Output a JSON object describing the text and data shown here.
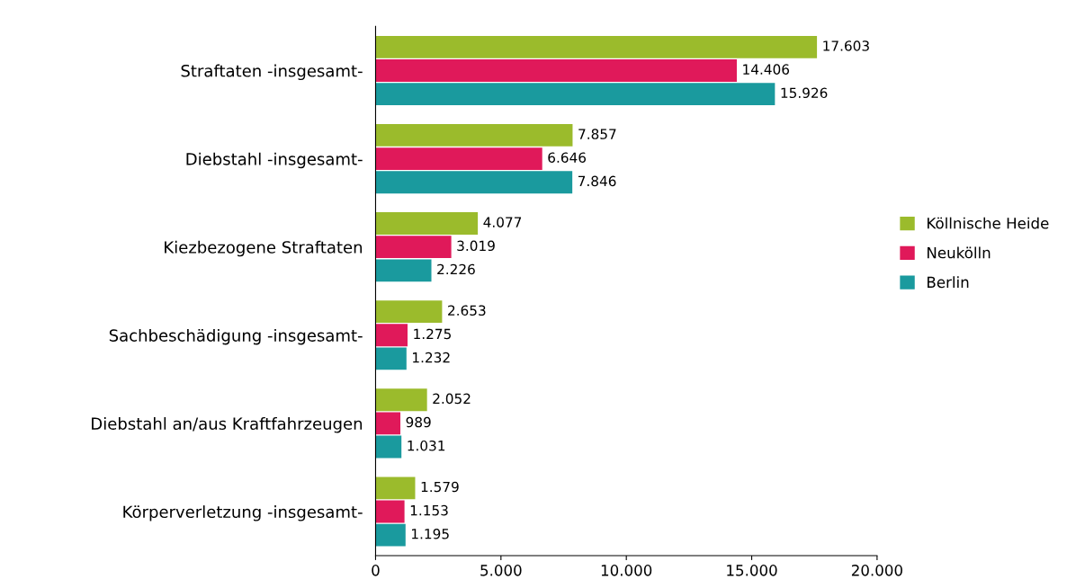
{
  "chart_data": {
    "type": "bar",
    "orientation": "horizontal",
    "categories": [
      "Straftaten -insgesamt-",
      "Diebstahl -insgesamt-",
      "Kiezbezogene Straftaten",
      "Sachbeschädigung -insgesamt-",
      "Diebstahl an/aus Kraftfahrzeugen",
      "Körperverletzung -insgesamt-"
    ],
    "series": [
      {
        "name": "Köllnische Heide",
        "color": "#9bbb2c",
        "values": [
          17603,
          7857,
          4077,
          2653,
          2052,
          1579
        ],
        "value_labels": [
          "17.603",
          "7.857",
          "4.077",
          "2.653",
          "2.052",
          "1.579"
        ]
      },
      {
        "name": "Neukölln",
        "color": "#e0195a",
        "values": [
          14406,
          6646,
          3019,
          1275,
          989,
          1153
        ],
        "value_labels": [
          "14.406",
          "6.646",
          "3.019",
          "1.275",
          "989",
          "1.153"
        ]
      },
      {
        "name": "Berlin",
        "color": "#1a9a9e",
        "values": [
          15926,
          7846,
          2226,
          1232,
          1031,
          1195
        ],
        "value_labels": [
          "15.926",
          "7.846",
          "2.226",
          "1.232",
          "1.031",
          "1.195"
        ]
      }
    ],
    "xlim": [
      0,
      20000
    ],
    "xticks": [
      0,
      {
        "value": 5000,
        "label": "5.000"
      },
      {
        "value": 10000,
        "label": "10.000"
      },
      {
        "value": 15000,
        "label": "15.000"
      },
      {
        "value": 20000,
        "label": "20.000"
      }
    ],
    "grid": false,
    "legend": "right"
  }
}
